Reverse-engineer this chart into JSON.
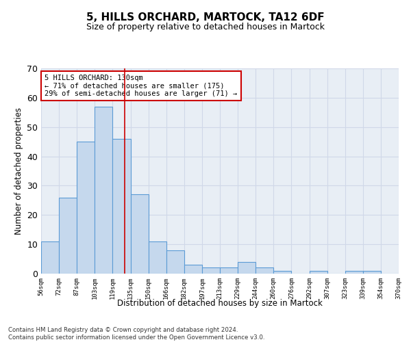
{
  "title": "5, HILLS ORCHARD, MARTOCK, TA12 6DF",
  "subtitle": "Size of property relative to detached houses in Martock",
  "xlabel": "Distribution of detached houses by size in Martock",
  "ylabel": "Number of detached properties",
  "bar_values": [
    11,
    26,
    45,
    57,
    46,
    27,
    11,
    8,
    3,
    2,
    2,
    4,
    2,
    1,
    0,
    1,
    0,
    1,
    1,
    0
  ],
  "bin_labels": [
    "56sqm",
    "72sqm",
    "87sqm",
    "103sqm",
    "119sqm",
    "135sqm",
    "150sqm",
    "166sqm",
    "182sqm",
    "197sqm",
    "213sqm",
    "229sqm",
    "244sqm",
    "260sqm",
    "276sqm",
    "292sqm",
    "307sqm",
    "323sqm",
    "339sqm",
    "354sqm",
    "370sqm"
  ],
  "bar_color": "#c5d8ed",
  "bar_edge_color": "#5b9bd5",
  "grid_color": "#d0d8e8",
  "annotation_text": "5 HILLS ORCHARD: 130sqm\n← 71% of detached houses are smaller (175)\n29% of semi-detached houses are larger (71) →",
  "annotation_box_color": "#ffffff",
  "annotation_box_edge_color": "#cc0000",
  "bin_edges": [
    56,
    72,
    87,
    103,
    119,
    135,
    150,
    166,
    182,
    197,
    213,
    229,
    244,
    260,
    276,
    292,
    307,
    323,
    339,
    354,
    370
  ],
  "property_sqm": 130,
  "ylim": [
    0,
    70
  ],
  "yticks": [
    0,
    10,
    20,
    30,
    40,
    50,
    60,
    70
  ],
  "footer_line1": "Contains HM Land Registry data © Crown copyright and database right 2024.",
  "footer_line2": "Contains public sector information licensed under the Open Government Licence v3.0.",
  "background_color": "#e8eef5"
}
